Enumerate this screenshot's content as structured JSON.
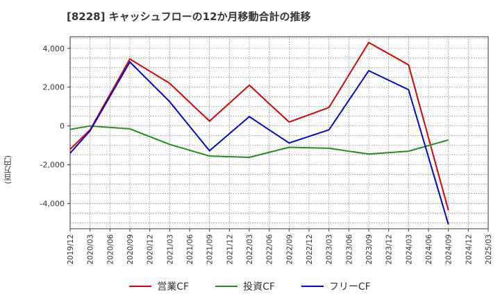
{
  "chart_data": {
    "type": "line",
    "title": "[8228]  キャッシュフローの12か月移動合計の推移",
    "ylabel": "(百万円)",
    "xlabel": "",
    "ylim": [
      -5300,
      4600
    ],
    "yticks": [
      4000,
      2000,
      0,
      -2000,
      -4000
    ],
    "ytick_labels": [
      "4,000",
      "2,000",
      "0",
      "-2,000",
      "-4,000"
    ],
    "categories": [
      "2019/12",
      "2020/03",
      "2020/06",
      "2020/09",
      "2020/12",
      "2021/03",
      "2021/06",
      "2021/09",
      "2021/12",
      "2022/03",
      "2022/06",
      "2022/09",
      "2022/12",
      "2023/03",
      "2023/06",
      "2023/09",
      "2023/12",
      "2024/03",
      "2024/06",
      "2024/09",
      "2024/12",
      "2025/03"
    ],
    "grid": true,
    "series": [
      {
        "name": "営業CF",
        "color": "#dd0000",
        "values": [
          -1200,
          -200,
          null,
          3450,
          null,
          2200,
          null,
          250,
          null,
          2100,
          null,
          200,
          null,
          950,
          null,
          4300,
          null,
          3150,
          null,
          -4350,
          null,
          null
        ]
      },
      {
        "name": "投資CF",
        "color": "#228b22",
        "values": [
          -180,
          0,
          null,
          -150,
          null,
          -950,
          null,
          -1550,
          null,
          -1620,
          null,
          -1100,
          null,
          -1150,
          null,
          -1450,
          null,
          -1300,
          null,
          -720,
          null,
          null
        ]
      },
      {
        "name": "フリーCF",
        "color": "#0000dd",
        "values": [
          -1400,
          -250,
          null,
          3300,
          null,
          1250,
          null,
          -1280,
          null,
          480,
          null,
          -880,
          null,
          -200,
          null,
          2850,
          null,
          1870,
          null,
          -5080,
          null,
          null
        ]
      }
    ]
  }
}
